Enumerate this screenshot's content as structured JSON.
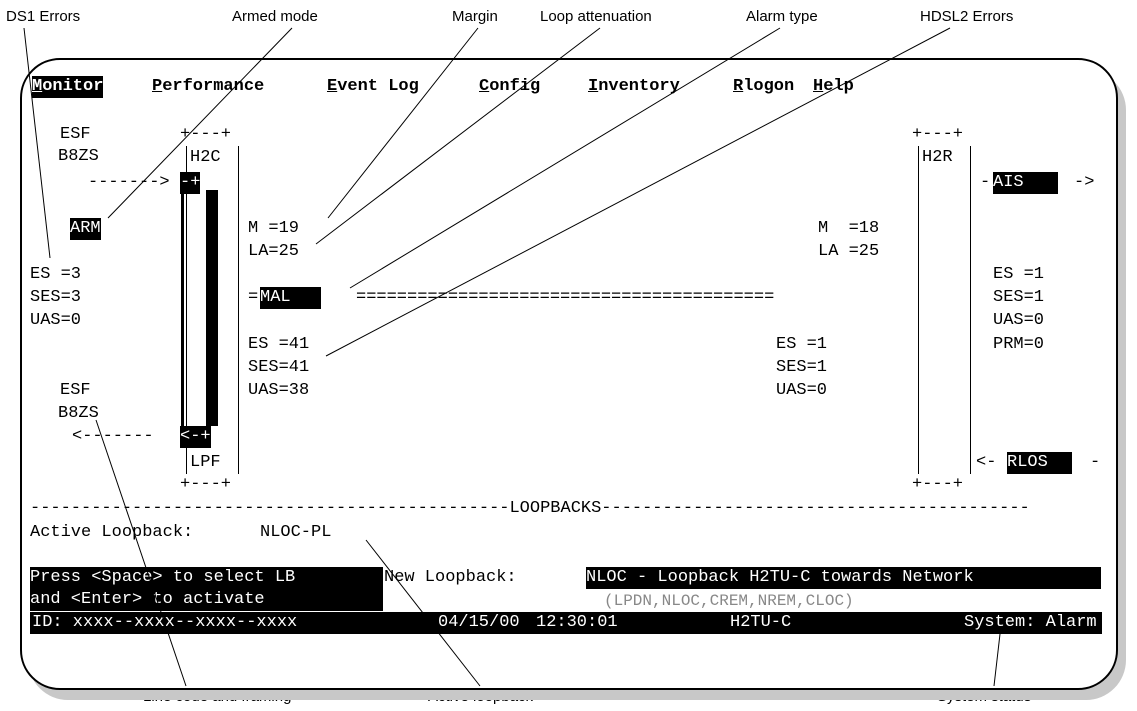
{
  "callouts": {
    "ds1_errors": "DS1 Errors",
    "armed_mode": "Armed mode",
    "margin": "Margin",
    "loop_attenuation": "Loop attenuation",
    "alarm_type": "Alarm type",
    "hdsl2_errors": "HDSL2 Errors",
    "line_code_framing": "Line code and framing",
    "active_loopback": "Active loopback",
    "system_status": "System status"
  },
  "menu": [
    {
      "hotkey": "M",
      "rest": "onitor",
      "selected": true
    },
    {
      "hotkey": "P",
      "rest": "erformance",
      "selected": false
    },
    {
      "hotkey": "E",
      "rest": "vent Log",
      "selected": false
    },
    {
      "hotkey": "C",
      "rest": "onfig",
      "selected": false
    },
    {
      "hotkey": "I",
      "rest": "nventory",
      "selected": false
    },
    {
      "hotkey": "R",
      "rest": "logon",
      "selected": false
    },
    {
      "hotkey": "H",
      "rest": "elp",
      "selected": false
    }
  ],
  "left": {
    "framing_top": "ESF",
    "linecode_top": "B8ZS",
    "arrow_in": "------->",
    "arm": "ARM",
    "es": "ES =3",
    "ses": "SES=3",
    "uas": "UAS=0",
    "framing_bottom": "ESF",
    "linecode_bottom": "B8ZS",
    "arrow_out": "<-------"
  },
  "h2c": {
    "top_border": "+---+",
    "label": "H2C",
    "top_connector": "-+",
    "bottom_connector": "<-+",
    "bottom_label": "LPF",
    "bottom_border": "+---+"
  },
  "loop_left": {
    "margin": "M =19",
    "attenuation": "LA=25",
    "es": "ES =41",
    "ses": "SES=41",
    "uas": "UAS=38"
  },
  "loop_right": {
    "margin": "M  =18",
    "attenuation": "LA =25",
    "es": "ES =1",
    "ses": "SES=1",
    "uas": "UAS=0"
  },
  "alarm": {
    "prefix": "=",
    "type": "MAL",
    "line": "========================================="
  },
  "h2r": {
    "top_border": "+---+",
    "label": "H2R",
    "bottom_border": "+---+"
  },
  "right": {
    "ais_prefix": "-",
    "ais": "AIS",
    "ais_suffix": "->",
    "es": "ES =1",
    "ses": "SES=1",
    "uas": "UAS=0",
    "prm": "PRM=0",
    "rlos_prefix": "<-",
    "rlos": "RLOS",
    "rlos_suffix": "-"
  },
  "loopbacks": {
    "divider": "-----------------------------------------------LOOPBACKS------------------------------------------",
    "active_label": "Active Loopback:",
    "active_value": "NLOC-PL",
    "help_line1": "Press <Space> to select LB",
    "help_line2": "and <Enter> to activate",
    "new_label": "New Loopback:",
    "new_value": "NLOC - Loopback H2TU-C towards Network",
    "options": "(LPDN,NLOC,CREM,NREM,CLOC)"
  },
  "status_bar": {
    "id": "ID: xxxx--xxxx--xxxx--xxxx",
    "date": "04/15/00",
    "time": "12:30:01",
    "unit": "H2TU-C",
    "system": "System: Alarm"
  },
  "colors": {
    "foreground": "#000000",
    "background": "#ffffff",
    "shadow": "#c8c8c8",
    "dim_text": "#888888"
  }
}
